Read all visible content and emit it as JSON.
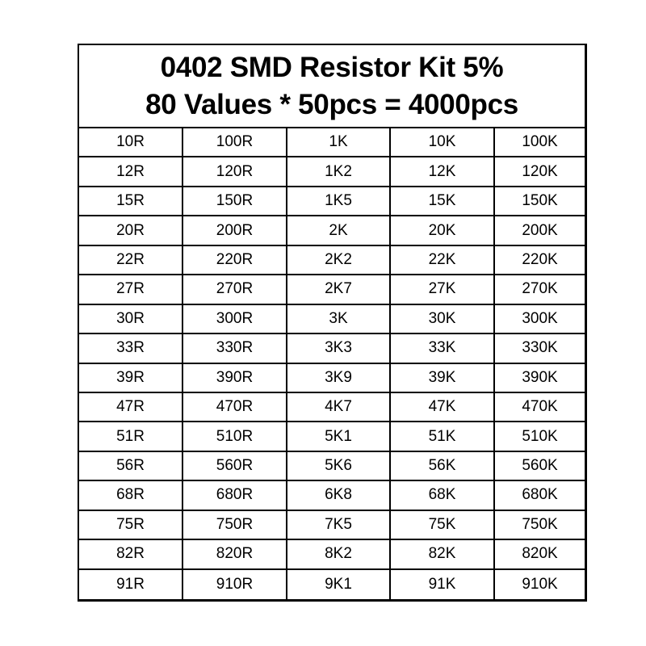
{
  "header": {
    "title": "0402 SMD Resistor Kit 5%",
    "subtitle": "80 Values * 50pcs = 4000pcs"
  },
  "table": {
    "columns": 5,
    "rows": [
      [
        "10R",
        "100R",
        "1K",
        "10K",
        "100K"
      ],
      [
        "12R",
        "120R",
        "1K2",
        "12K",
        "120K"
      ],
      [
        "15R",
        "150R",
        "1K5",
        "15K",
        "150K"
      ],
      [
        "20R",
        "200R",
        "2K",
        "20K",
        "200K"
      ],
      [
        "22R",
        "220R",
        "2K2",
        "22K",
        "220K"
      ],
      [
        "27R",
        "270R",
        "2K7",
        "27K",
        "270K"
      ],
      [
        "30R",
        "300R",
        "3K",
        "30K",
        "300K"
      ],
      [
        "33R",
        "330R",
        "3K3",
        "33K",
        "330K"
      ],
      [
        "39R",
        "390R",
        "3K9",
        "39K",
        "390K"
      ],
      [
        "47R",
        "470R",
        "4K7",
        "47K",
        "470K"
      ],
      [
        "51R",
        "510R",
        "5K1",
        "51K",
        "510K"
      ],
      [
        "56R",
        "560R",
        "5K6",
        "56K",
        "560K"
      ],
      [
        "68R",
        "680R",
        "6K8",
        "68K",
        "680K"
      ],
      [
        "75R",
        "750R",
        "7K5",
        "75K",
        "750K"
      ],
      [
        "82R",
        "820R",
        "8K2",
        "82K",
        "820K"
      ],
      [
        "91R",
        "910R",
        "9K1",
        "91K",
        "910K"
      ]
    ]
  },
  "colors": {
    "border": "#000000",
    "text": "#000000",
    "background": "#ffffff"
  }
}
